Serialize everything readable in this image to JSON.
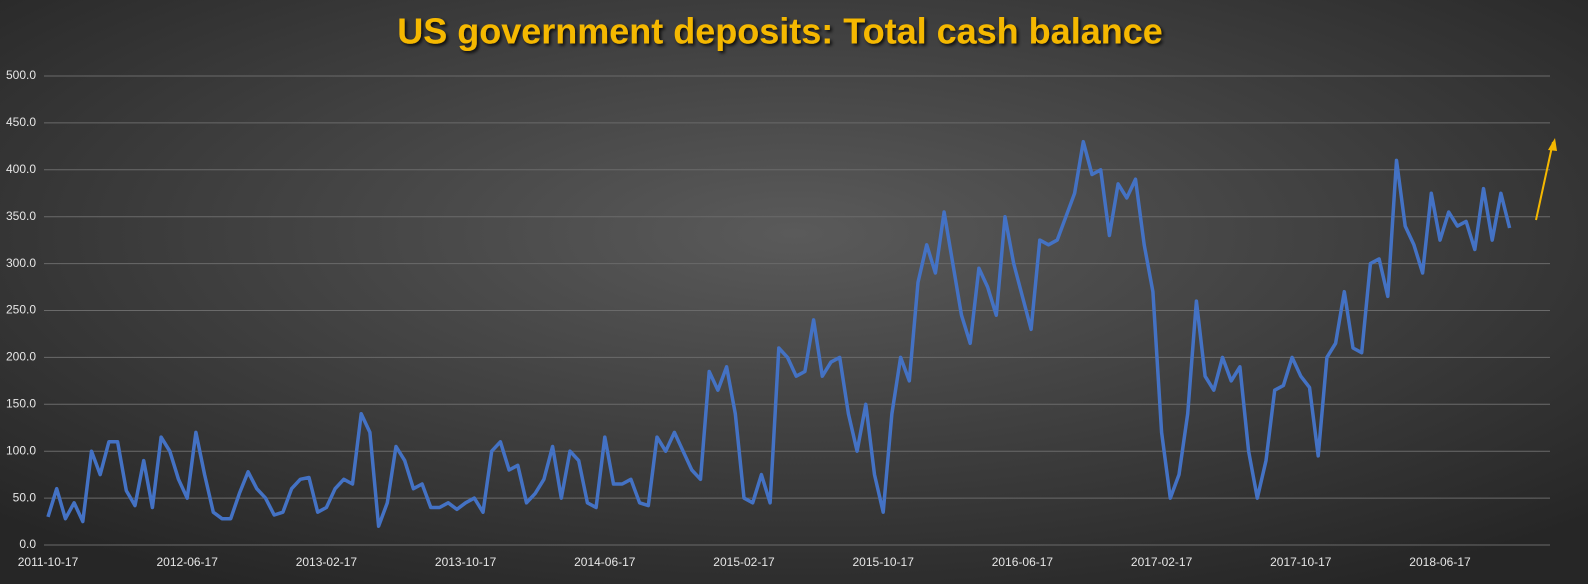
{
  "chart_data": {
    "type": "line",
    "title": "US government deposits: Total cash balance",
    "categories": [
      "2011-10-17",
      null,
      null,
      null,
      null,
      null,
      null,
      null,
      null,
      null,
      null,
      null,
      null,
      null,
      null,
      null,
      "2012-06-17",
      null,
      null,
      null,
      null,
      null,
      null,
      null,
      null,
      null,
      null,
      null,
      null,
      null,
      null,
      null,
      "2013-02-17",
      null,
      null,
      null,
      null,
      null,
      null,
      null,
      null,
      null,
      null,
      null,
      null,
      null,
      null,
      null,
      "2013-10-17",
      null,
      null,
      null,
      null,
      null,
      null,
      null,
      null,
      null,
      null,
      null,
      null,
      null,
      null,
      null,
      "2014-06-17",
      null,
      null,
      null,
      null,
      null,
      null,
      null,
      null,
      null,
      null,
      null,
      null,
      null,
      null,
      null,
      "2015-02-17",
      null,
      null,
      null,
      null,
      null,
      null,
      null,
      null,
      null,
      null,
      null,
      null,
      null,
      null,
      null,
      "2015-10-17",
      null,
      null,
      null,
      null,
      null,
      null,
      null,
      null,
      null,
      null,
      null,
      null,
      null,
      null,
      null,
      "2016-06-17",
      null,
      null,
      null,
      null,
      null,
      null,
      null,
      null,
      null,
      null,
      null,
      null,
      null,
      null,
      null,
      "2017-02-17",
      null,
      null,
      null,
      null,
      null,
      null,
      null,
      null,
      null,
      null,
      null,
      null,
      null,
      null,
      null,
      "2017-10-17",
      null,
      null,
      null,
      null,
      null,
      null,
      null,
      null,
      null,
      null,
      null,
      null,
      null,
      null,
      null,
      "2018-06-17",
      null,
      null,
      null,
      null,
      null,
      null,
      null,
      null
    ],
    "values": [
      30,
      60,
      28,
      45,
      25,
      100,
      75,
      110,
      110,
      58,
      42,
      90,
      40,
      115,
      100,
      70,
      50,
      120,
      75,
      35,
      28,
      28,
      55,
      78,
      60,
      50,
      32,
      35,
      60,
      70,
      72,
      35,
      40,
      60,
      70,
      65,
      140,
      120,
      20,
      45,
      105,
      90,
      60,
      65,
      40,
      40,
      45,
      38,
      45,
      50,
      35,
      100,
      110,
      80,
      85,
      45,
      55,
      70,
      105,
      50,
      100,
      90,
      45,
      40,
      115,
      65,
      65,
      70,
      45,
      42,
      115,
      100,
      120,
      100,
      80,
      70,
      185,
      165,
      190,
      140,
      50,
      45,
      75,
      45,
      210,
      200,
      180,
      185,
      240,
      180,
      195,
      200,
      140,
      100,
      150,
      75,
      35,
      140,
      200,
      175,
      280,
      320,
      290,
      355,
      300,
      245,
      215,
      295,
      275,
      245,
      350,
      300,
      265,
      230,
      325,
      320,
      325,
      350,
      375,
      430,
      395,
      400,
      330,
      385,
      370,
      390,
      320,
      270,
      120,
      50,
      75,
      140,
      260,
      180,
      165,
      200,
      175,
      190,
      100,
      50,
      90,
      165,
      170,
      200,
      180,
      168,
      95,
      200,
      215,
      270,
      210,
      205,
      300,
      305,
      265,
      410,
      340,
      320,
      290,
      375,
      325,
      355,
      340,
      345,
      315,
      380,
      325,
      375,
      338
    ],
    "color": "#4472c4",
    "ylim": [
      0,
      500
    ],
    "yticks": [
      {
        "value": 0,
        "label": "0.0"
      },
      {
        "value": 50,
        "label": "50.0"
      },
      {
        "value": 100,
        "label": "100.0"
      },
      {
        "value": 150,
        "label": "150.0"
      },
      {
        "value": 200,
        "label": "200.0"
      },
      {
        "value": 250,
        "label": "250.0"
      },
      {
        "value": 300,
        "label": "300.0"
      },
      {
        "value": 350,
        "label": "350.0"
      },
      {
        "value": 400,
        "label": "400.0"
      },
      {
        "value": 450,
        "label": "450.0"
      },
      {
        "value": 500,
        "label": "500.0"
      }
    ],
    "grid": true
  }
}
